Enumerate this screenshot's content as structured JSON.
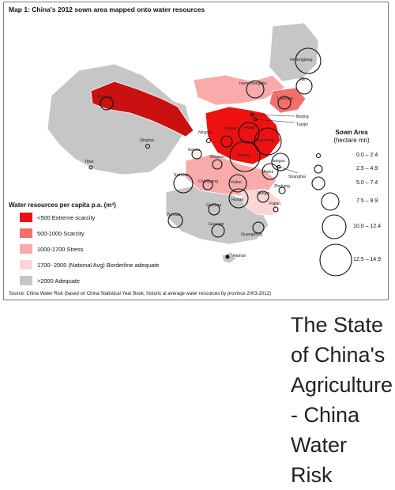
{
  "map": {
    "title": "Map 1: China's 2012 sown area mapped onto water resources",
    "source": "Source: China Water Risk (based on China Statistical Year Book, historic al average water resources by province 2003-2012)"
  },
  "water_legend": {
    "title": "Water resources per capita p.a. (m³)",
    "items": [
      {
        "label": "<500 Extreme scarcity",
        "color": "#ee1111"
      },
      {
        "label": "500-1000 Scarcity",
        "color": "#f46e6e"
      },
      {
        "label": "1000-1700 Stress",
        "color": "#f9abab"
      },
      {
        "label": "1700- 2000 (National Avg) Borderline adequate",
        "color": "#fcd6d6"
      },
      {
        "label": ">2000 Adequate",
        "color": "#c6c6c6"
      }
    ]
  },
  "sown_legend": {
    "title": "Sown Area",
    "subtitle": "(hectare mn)",
    "items": [
      {
        "label": "0.0 – 2.4"
      },
      {
        "label": "2.5 – 4.9"
      },
      {
        "label": "5.0 – 7.4"
      },
      {
        "label": "7.5 – 9.9"
      },
      {
        "label": "10.0 – 12.4"
      },
      {
        "label": "12.5 – 14.9"
      }
    ]
  },
  "provinces": [
    {
      "name": "Heilongjiang"
    },
    {
      "name": "Jilin"
    },
    {
      "name": "Liaoning"
    },
    {
      "name": "Inner Mongolia"
    },
    {
      "name": "Xinjiang"
    },
    {
      "name": "Qinghai"
    },
    {
      "name": "Tibet"
    },
    {
      "name": "Beijing"
    },
    {
      "name": "Tianjin"
    },
    {
      "name": "Hebei"
    },
    {
      "name": "Shanxi"
    },
    {
      "name": "Ningxia"
    },
    {
      "name": "Gansu"
    },
    {
      "name": "Shaanxi"
    },
    {
      "name": "Shandong"
    },
    {
      "name": "Henan"
    },
    {
      "name": "Jiangsu"
    },
    {
      "name": "Anhui"
    },
    {
      "name": "Shanghai"
    },
    {
      "name": "Hubei"
    },
    {
      "name": "Sichuan"
    },
    {
      "name": "Chongqing"
    },
    {
      "name": "Zhejiang"
    },
    {
      "name": "Jiangxi"
    },
    {
      "name": "Hunan"
    },
    {
      "name": "Fujian"
    },
    {
      "name": "Guizhou"
    },
    {
      "name": "Yunnan"
    },
    {
      "name": "Guangxi"
    },
    {
      "name": "Guangdong"
    },
    {
      "name": "Hainan"
    }
  ],
  "caption": "The State of China's Agriculture - China Water Risk"
}
